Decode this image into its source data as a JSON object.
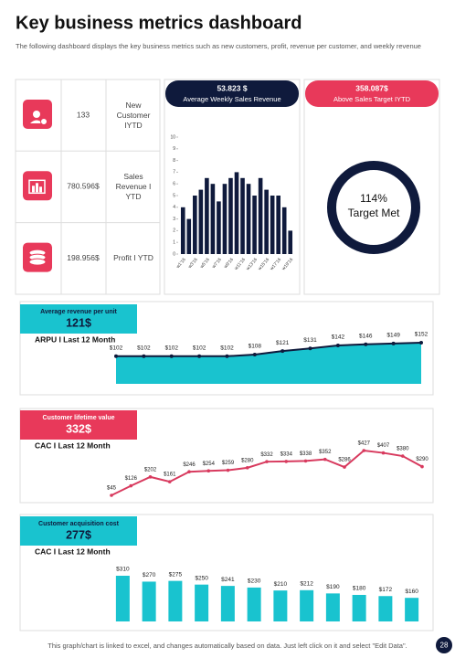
{
  "header": {
    "title": "Key business metrics dashboard",
    "subtitle": "The following dashboard displays the key business metrics such as new customers, profit, revenue per customer, and weekly revenue"
  },
  "kpis": [
    {
      "value": "133",
      "label": "New Customer IYTD"
    },
    {
      "value": "780.596$",
      "label": "Sales Revenue I YTD"
    },
    {
      "value": "198.956$",
      "label": "Profit I YTD"
    }
  ],
  "chart_data": [
    {
      "type": "bar",
      "badge_value": "53.823 $",
      "badge_label": "Average Weekly Sales Revenue",
      "categories": [
        "w1'16",
        null,
        "w3'16",
        null,
        "w5'16",
        null,
        "w7'16",
        null,
        "w9'16",
        null,
        "w11'16",
        null,
        "w13'16",
        null,
        "w15'16",
        null,
        "w17'16",
        null,
        "w19'16"
      ],
      "values": [
        4,
        3,
        5,
        5.5,
        6.5,
        6,
        4.5,
        6,
        6.5,
        7,
        6.5,
        6,
        5,
        6.5,
        5.5,
        5,
        5,
        4,
        2
      ],
      "color": "#0f1a3c",
      "ylim": [
        0,
        10
      ],
      "yticks": [
        0,
        1,
        2,
        3,
        4,
        5,
        6,
        7,
        8,
        9,
        10
      ]
    },
    {
      "type": "donut",
      "badge_value": "358.087$",
      "badge_label": "Above Sales Target IYTD",
      "value": 114,
      "value_label": "114%",
      "center_label": "Target Met",
      "color": "#0f1a3c"
    },
    {
      "type": "area",
      "title": "Average revenue per unit",
      "headline": "121$",
      "subtitle": "ARPU I Last 12 Month",
      "values": [
        102,
        102,
        102,
        102,
        102,
        108,
        121,
        131,
        142,
        146,
        149,
        152
      ],
      "value_labels": [
        "$102",
        "$102",
        "$102",
        "$102",
        "$102",
        "$108",
        "$121",
        "$131",
        "$142",
        "$146",
        "$149",
        "$152"
      ],
      "color": "#19c3cf",
      "line_color": "#0f1a3c"
    },
    {
      "type": "line",
      "title": "Customer lifetime value",
      "headline": "332$",
      "subtitle": "CAC I Last 12 Month",
      "values": [
        45,
        126,
        202,
        161,
        246,
        254,
        259,
        280,
        332,
        334,
        338,
        352,
        286,
        427,
        407,
        380,
        290
      ],
      "value_labels": [
        "$45",
        "$126",
        "$202",
        "$161",
        "$246",
        "$254",
        "$259",
        "$280",
        "$332",
        "$334",
        "$338",
        "$352",
        "$286",
        "$427",
        "$407",
        "$380",
        "$290"
      ],
      "color": "#d83a5e"
    },
    {
      "type": "bar",
      "title": "Customer acquisition cost",
      "headline": "277$",
      "subtitle": "CAC  I  Last 12 Month",
      "values": [
        310,
        270,
        275,
        250,
        241,
        230,
        210,
        212,
        190,
        180,
        172,
        160
      ],
      "value_labels": [
        "$310",
        "$270",
        "$275",
        "$250",
        "$241",
        "$230",
        "$210",
        "$212",
        "$190",
        "$180",
        "$172",
        "$160"
      ],
      "color": "#19c3cf"
    }
  ],
  "footer": {
    "note": "This graph/chart is linked to excel, and changes automatically based on data. Just left click on it and select \"Edit Data\".",
    "page": "28"
  }
}
